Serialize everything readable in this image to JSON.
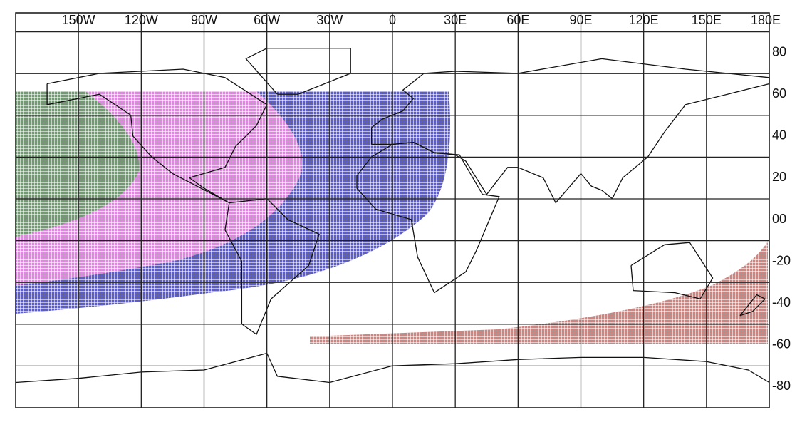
{
  "longitude_labels": [
    "150W",
    "120W",
    "90W",
    "60W",
    "30W",
    "0",
    "30E",
    "60E",
    "90E",
    "120E",
    "150E",
    "180E"
  ],
  "latitude_labels": [
    "80",
    "60",
    "40",
    "20",
    "00",
    "-20",
    "-40",
    "-60",
    "-80"
  ]
}
